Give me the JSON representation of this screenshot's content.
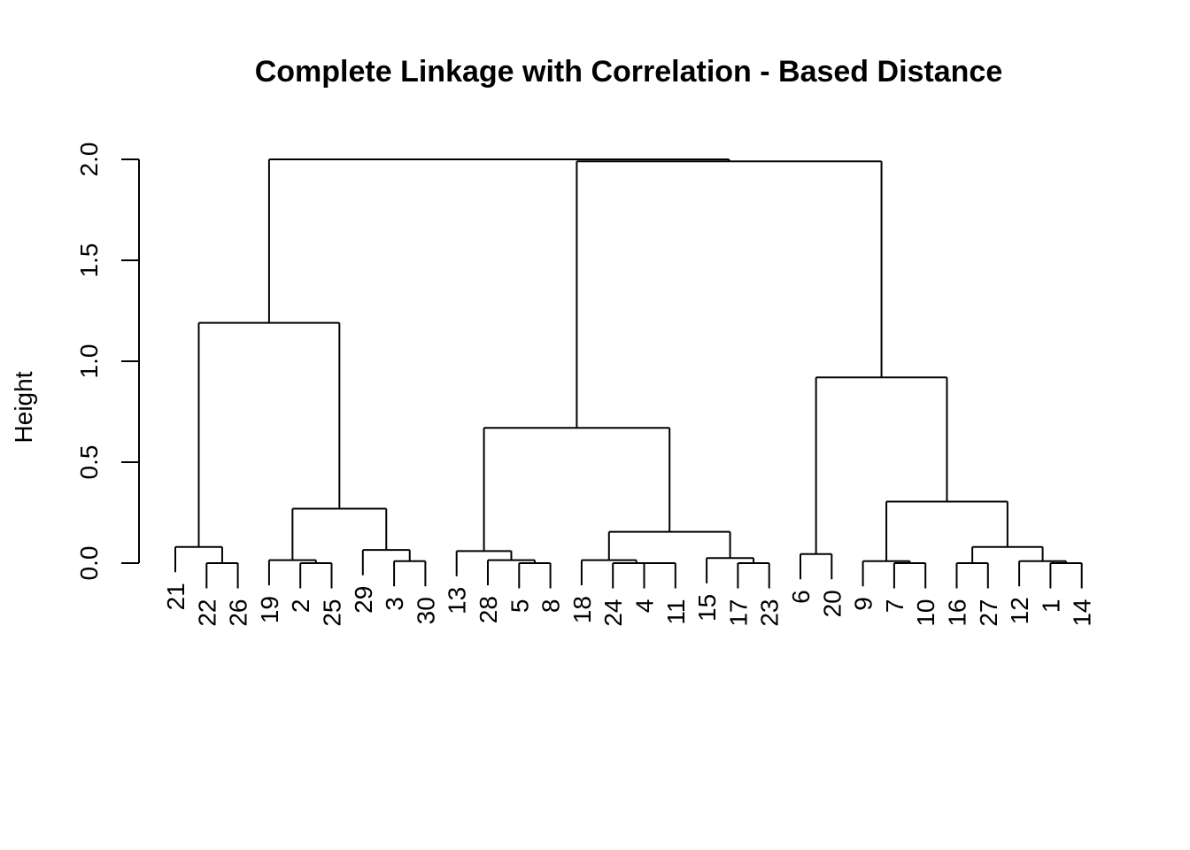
{
  "chart_data": {
    "type": "dendrogram",
    "title": "Complete Linkage with Correlation - Based Distance",
    "xlabel": "",
    "ylabel": "Height",
    "ylim": [
      0,
      2.0
    ],
    "yticks": [
      0.0,
      0.5,
      1.0,
      1.5,
      2.0
    ],
    "ytick_labels": [
      "0.0",
      "0.5",
      "1.0",
      "1.5",
      "2.0"
    ],
    "leaf_order": [
      "21",
      "22",
      "26",
      "19",
      "2",
      "25",
      "29",
      "3",
      "30",
      "13",
      "28",
      "5",
      "8",
      "18",
      "24",
      "4",
      "11",
      "15",
      "17",
      "23",
      "6",
      "20",
      "9",
      "7",
      "10",
      "16",
      "27",
      "12",
      "1",
      "14"
    ],
    "merges": [
      {
        "children": [
          "22",
          "26"
        ],
        "height": 0.0
      },
      {
        "children": [
          "21",
          0
        ],
        "height": 0.08
      },
      {
        "children": [
          "2",
          "25"
        ],
        "height": 0.0
      },
      {
        "children": [
          "19",
          2
        ],
        "height": 0.015
      },
      {
        "children": [
          "3",
          "30"
        ],
        "height": 0.01
      },
      {
        "children": [
          "29",
          4
        ],
        "height": 0.065
      },
      {
        "children": [
          3,
          5
        ],
        "height": 0.27
      },
      {
        "children": [
          1,
          6
        ],
        "height": 1.19
      },
      {
        "children": [
          "5",
          "8"
        ],
        "height": 0.0
      },
      {
        "children": [
          "28",
          8
        ],
        "height": 0.015
      },
      {
        "children": [
          "13",
          9
        ],
        "height": 0.06
      },
      {
        "children": [
          "4",
          "11"
        ],
        "height": 0.0
      },
      {
        "children": [
          "24",
          11
        ],
        "height": 0.0
      },
      {
        "children": [
          "18",
          12
        ],
        "height": 0.015
      },
      {
        "children": [
          "17",
          "23"
        ],
        "height": 0.0
      },
      {
        "children": [
          "15",
          14
        ],
        "height": 0.025
      },
      {
        "children": [
          13,
          15
        ],
        "height": 0.155
      },
      {
        "children": [
          10,
          16
        ],
        "height": 0.67
      },
      {
        "children": [
          "6",
          "20"
        ],
        "height": 0.045
      },
      {
        "children": [
          "7",
          "10"
        ],
        "height": 0.0
      },
      {
        "children": [
          "9",
          19
        ],
        "height": 0.01
      },
      {
        "children": [
          "16",
          "27"
        ],
        "height": 0.0
      },
      {
        "children": [
          "1",
          "14"
        ],
        "height": 0.0
      },
      {
        "children": [
          "12",
          22
        ],
        "height": 0.01
      },
      {
        "children": [
          21,
          23
        ],
        "height": 0.08
      },
      {
        "children": [
          20,
          24
        ],
        "height": 0.305
      },
      {
        "children": [
          18,
          25
        ],
        "height": 0.92
      },
      {
        "children": [
          17,
          26
        ],
        "height": 1.99
      },
      {
        "children": [
          7,
          27
        ],
        "height": 2.0
      }
    ]
  }
}
